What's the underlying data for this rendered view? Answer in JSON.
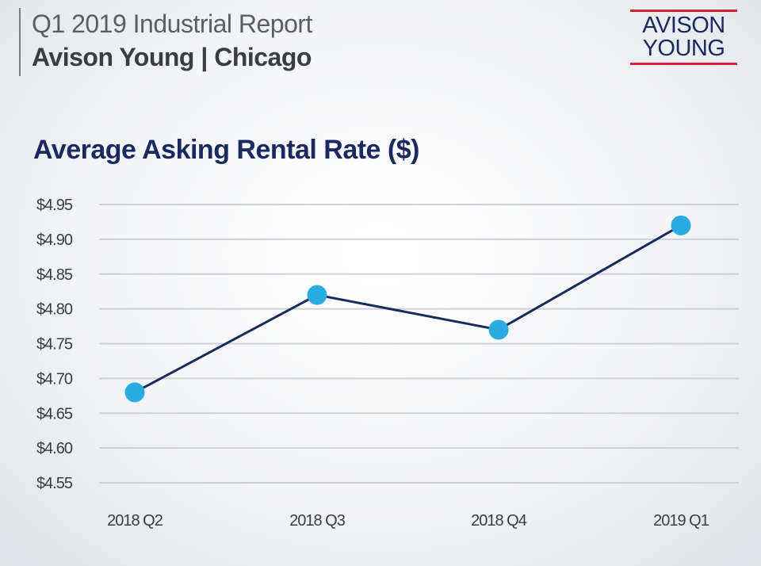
{
  "header": {
    "report_title": "Q1 2019 Industrial Report",
    "report_subtitle": "Avison Young | Chicago"
  },
  "logo": {
    "line1": "AVISON",
    "line2": "YOUNG",
    "text_color": "#1b2a5e",
    "bar_color": "#d0243b"
  },
  "chart_data": {
    "type": "line",
    "title": "Average Asking Rental Rate ($)",
    "xlabel": "",
    "ylabel": "",
    "categories": [
      "2018 Q2",
      "2018 Q3",
      "2018 Q4",
      "2019 Q1"
    ],
    "series": [
      {
        "values": [
          4.68,
          4.82,
          4.77,
          4.92
        ]
      }
    ],
    "ylim": [
      4.55,
      4.95
    ],
    "yticks": [
      4.95,
      4.9,
      4.85,
      4.8,
      4.75,
      4.7,
      4.65,
      4.6,
      4.55
    ],
    "ytick_labels": [
      "$4.95",
      "$4.90",
      "$4.85",
      "$4.80",
      "$4.75",
      "$4.70",
      "$4.65",
      "$4.60",
      "$4.55"
    ],
    "grid": true,
    "legend": "none",
    "colors": {
      "line": "#1b2a5e",
      "marker": "#29acdf",
      "grid": "#cfd1d6"
    }
  }
}
